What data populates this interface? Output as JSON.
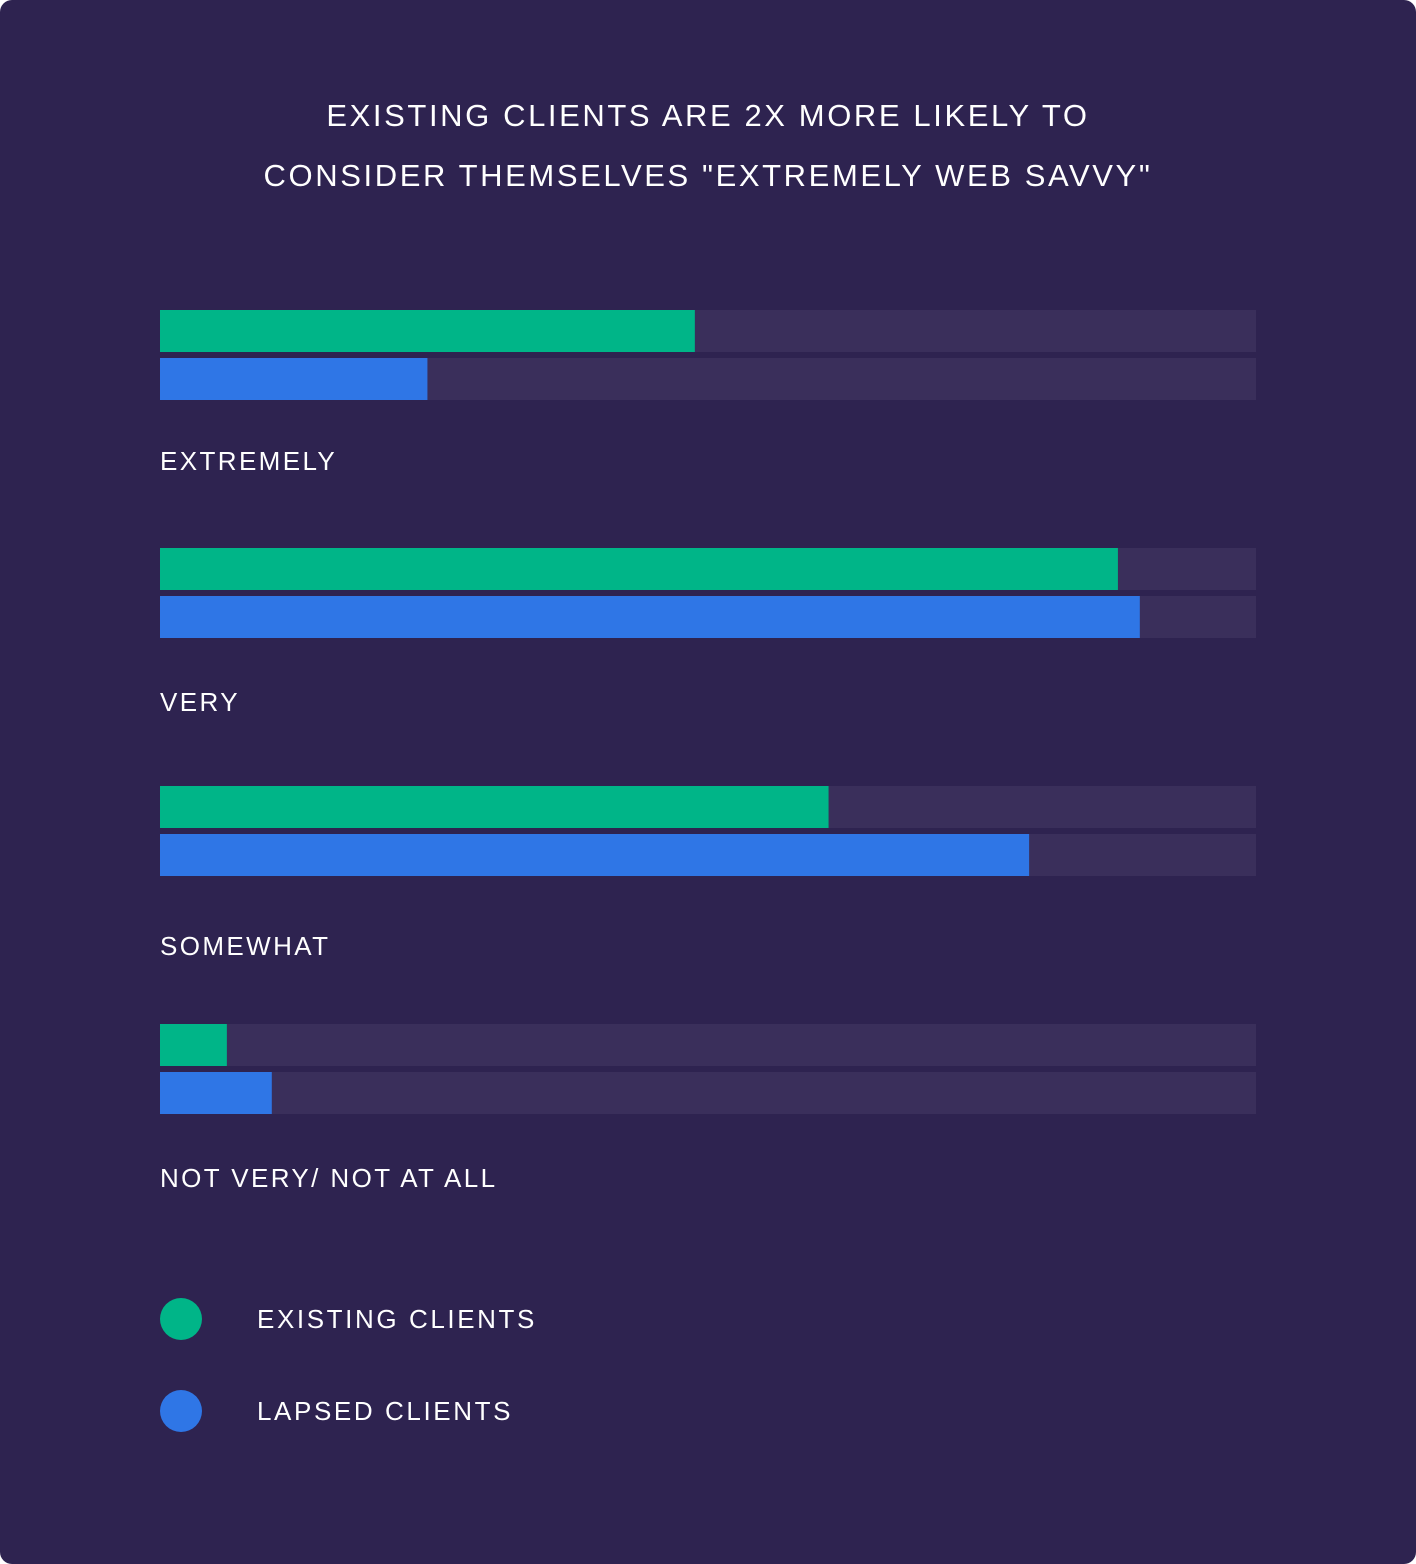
{
  "colors": {
    "background": "#2e2350",
    "track": "#3a2f5b",
    "existing": "#00b588",
    "lapsed": "#2f76e6"
  },
  "chart_data": {
    "type": "bar",
    "orientation": "horizontal",
    "title_lines": [
      "EXISTING CLIENTS ARE 2X MORE LIKELY TO",
      "CONSIDER THEMSELVES \"EXTREMELY WEB SAVVY\""
    ],
    "categories": [
      "EXTREMELY",
      "VERY",
      "SOMEWHAT",
      "NOT VERY/ NOT AT ALL"
    ],
    "series": [
      {
        "name": "EXISTING CLIENTS",
        "color": "#00b588",
        "values": [
          48.8,
          87.4,
          61.0,
          6.1
        ]
      },
      {
        "name": "LAPSED CLIENTS",
        "color": "#2f76e6",
        "values": [
          24.4,
          89.4,
          79.3,
          10.2
        ]
      }
    ],
    "xlim": [
      0,
      100
    ],
    "grid": false,
    "legend_position": "bottom-left"
  }
}
